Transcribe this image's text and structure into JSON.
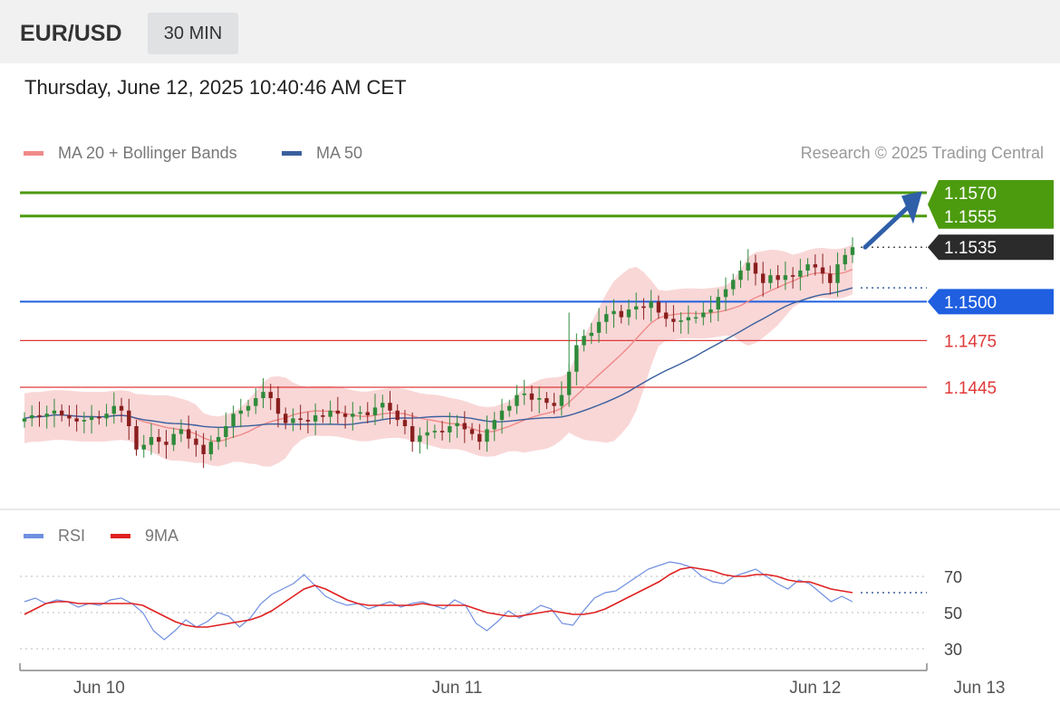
{
  "header": {
    "symbol": "EUR/USD",
    "timeframe": "30 MIN",
    "datetime": "Thursday, June 12, 2025 10:40:46 AM CET"
  },
  "legend": {
    "items": [
      {
        "label": "MA 20 + Bollinger Bands",
        "color": "#f08a8a"
      },
      {
        "label": "MA 50",
        "color": "#3a5f9e"
      }
    ],
    "credit": "Research © 2025 Trading Central"
  },
  "rsi_legend": {
    "items": [
      {
        "label": "RSI",
        "color": "#6f8fe0"
      },
      {
        "label": "9MA",
        "color": "#e02020"
      }
    ]
  },
  "colors": {
    "up": "#2f8a3a",
    "down": "#8a1f1f",
    "target": "#4c9a0e",
    "pivot": "#1f5fe0",
    "support": "#e03a3a",
    "last": "#2b2b2b",
    "band": "#f7c9c9",
    "ma20": "#f08a8a",
    "ma50": "#3a5f9e",
    "rsi": "#6f8fe0",
    "rsi_ma": "#e02020"
  },
  "price_levels": [
    {
      "value": 1.157,
      "label": "1.1570",
      "kind": "target"
    },
    {
      "value": 1.1555,
      "label": "1.1555",
      "kind": "target"
    },
    {
      "value": 1.1535,
      "label": "1.1535",
      "kind": "last"
    },
    {
      "value": 1.15,
      "label": "1.1500",
      "kind": "pivot"
    },
    {
      "value": 1.1475,
      "label": "1.1475",
      "kind": "support"
    },
    {
      "value": 1.1445,
      "label": "1.1445",
      "kind": "support"
    }
  ],
  "x_axis": {
    "labels": [
      {
        "label": "Jun 10",
        "bar": 10
      },
      {
        "label": "Jun 11",
        "bar": 58
      },
      {
        "label": "Jun 12",
        "bar": 106
      },
      {
        "label": "Jun 13",
        "bar": 128
      }
    ]
  },
  "rsi_axis": {
    "ticks": [
      "70",
      "50",
      "30"
    ],
    "tick_values": [
      70,
      50,
      30
    ]
  },
  "chart_data": [
    {
      "type": "candlestick",
      "title": "EUR/USD",
      "timeframe": "30 MIN",
      "y_range": [
        1.1395,
        1.159
      ],
      "closes": [
        1.1425,
        1.1427,
        1.1426,
        1.1428,
        1.143,
        1.1427,
        1.1425,
        1.1423,
        1.1424,
        1.1426,
        1.1425,
        1.1428,
        1.1433,
        1.143,
        1.142,
        1.1405,
        1.1408,
        1.1413,
        1.141,
        1.1408,
        1.1415,
        1.1418,
        1.1412,
        1.1408,
        1.1402,
        1.141,
        1.1413,
        1.142,
        1.1428,
        1.143,
        1.1433,
        1.1438,
        1.1442,
        1.1438,
        1.1428,
        1.1422,
        1.1425,
        1.1424,
        1.1423,
        1.1427,
        1.1426,
        1.143,
        1.1428,
        1.1426,
        1.1428,
        1.1429,
        1.1427,
        1.1432,
        1.1435,
        1.143,
        1.1424,
        1.142,
        1.141,
        1.1414,
        1.1416,
        1.1417,
        1.1416,
        1.142,
        1.1422,
        1.1418,
        1.1415,
        1.141,
        1.1418,
        1.1424,
        1.143,
        1.1433,
        1.144,
        1.1441,
        1.1437,
        1.1438,
        1.1435,
        1.1433,
        1.144,
        1.1455,
        1.1472,
        1.1478,
        1.148,
        1.1487,
        1.1492,
        1.1494,
        1.149,
        1.1495,
        1.1497,
        1.1496,
        1.15,
        1.1493,
        1.1489,
        1.1487,
        1.1488,
        1.149,
        1.149,
        1.1493,
        1.1495,
        1.1503,
        1.1508,
        1.1514,
        1.152,
        1.1525,
        1.1518,
        1.1512,
        1.1517,
        1.1514,
        1.1517,
        1.1516,
        1.152,
        1.1524,
        1.1522,
        1.1518,
        1.1512,
        1.1524,
        1.153,
        1.1535
      ],
      "ma20_start": 1.1425,
      "ma50_start": 1.1418,
      "ma20_end": 1.1521,
      "ma50_end": 1.149,
      "last": 1.1535
    },
    {
      "type": "line",
      "title": "RSI",
      "y_range": [
        25,
        80
      ],
      "series": [
        {
          "name": "RSI",
          "values": [
            56,
            58,
            55,
            57,
            56,
            53,
            55,
            54,
            57,
            58,
            55,
            50,
            40,
            35,
            40,
            46,
            42,
            45,
            50,
            48,
            42,
            47,
            55,
            60,
            63,
            66,
            71,
            65,
            59,
            56,
            54,
            55,
            52,
            54,
            56,
            53,
            55,
            56,
            54,
            52,
            57,
            54,
            44,
            40,
            45,
            51,
            47,
            50,
            54,
            52,
            44,
            43,
            51,
            58,
            61,
            62,
            66,
            70,
            74,
            76,
            78,
            77,
            75,
            70,
            67,
            66,
            70,
            72,
            74,
            70,
            66,
            63,
            68,
            66,
            61,
            56,
            59,
            56
          ]
        },
        {
          "name": "9MA",
          "values": [
            49,
            52,
            55,
            56,
            56,
            55,
            55,
            55,
            55,
            55,
            55,
            54,
            51,
            48,
            45,
            43,
            42,
            42,
            43,
            44,
            45,
            46,
            48,
            51,
            55,
            59,
            63,
            65,
            63,
            60,
            57,
            55,
            54,
            54,
            54,
            54,
            54,
            55,
            54,
            54,
            54,
            54,
            52,
            50,
            49,
            48,
            48,
            49,
            50,
            51,
            50,
            49,
            49,
            50,
            52,
            55,
            58,
            61,
            64,
            67,
            71,
            74,
            75,
            74,
            73,
            71,
            70,
            70,
            71,
            71,
            70,
            68,
            67,
            67,
            65,
            63,
            62,
            61
          ]
        }
      ],
      "reference_lines": [
        70,
        50,
        30
      ]
    }
  ]
}
